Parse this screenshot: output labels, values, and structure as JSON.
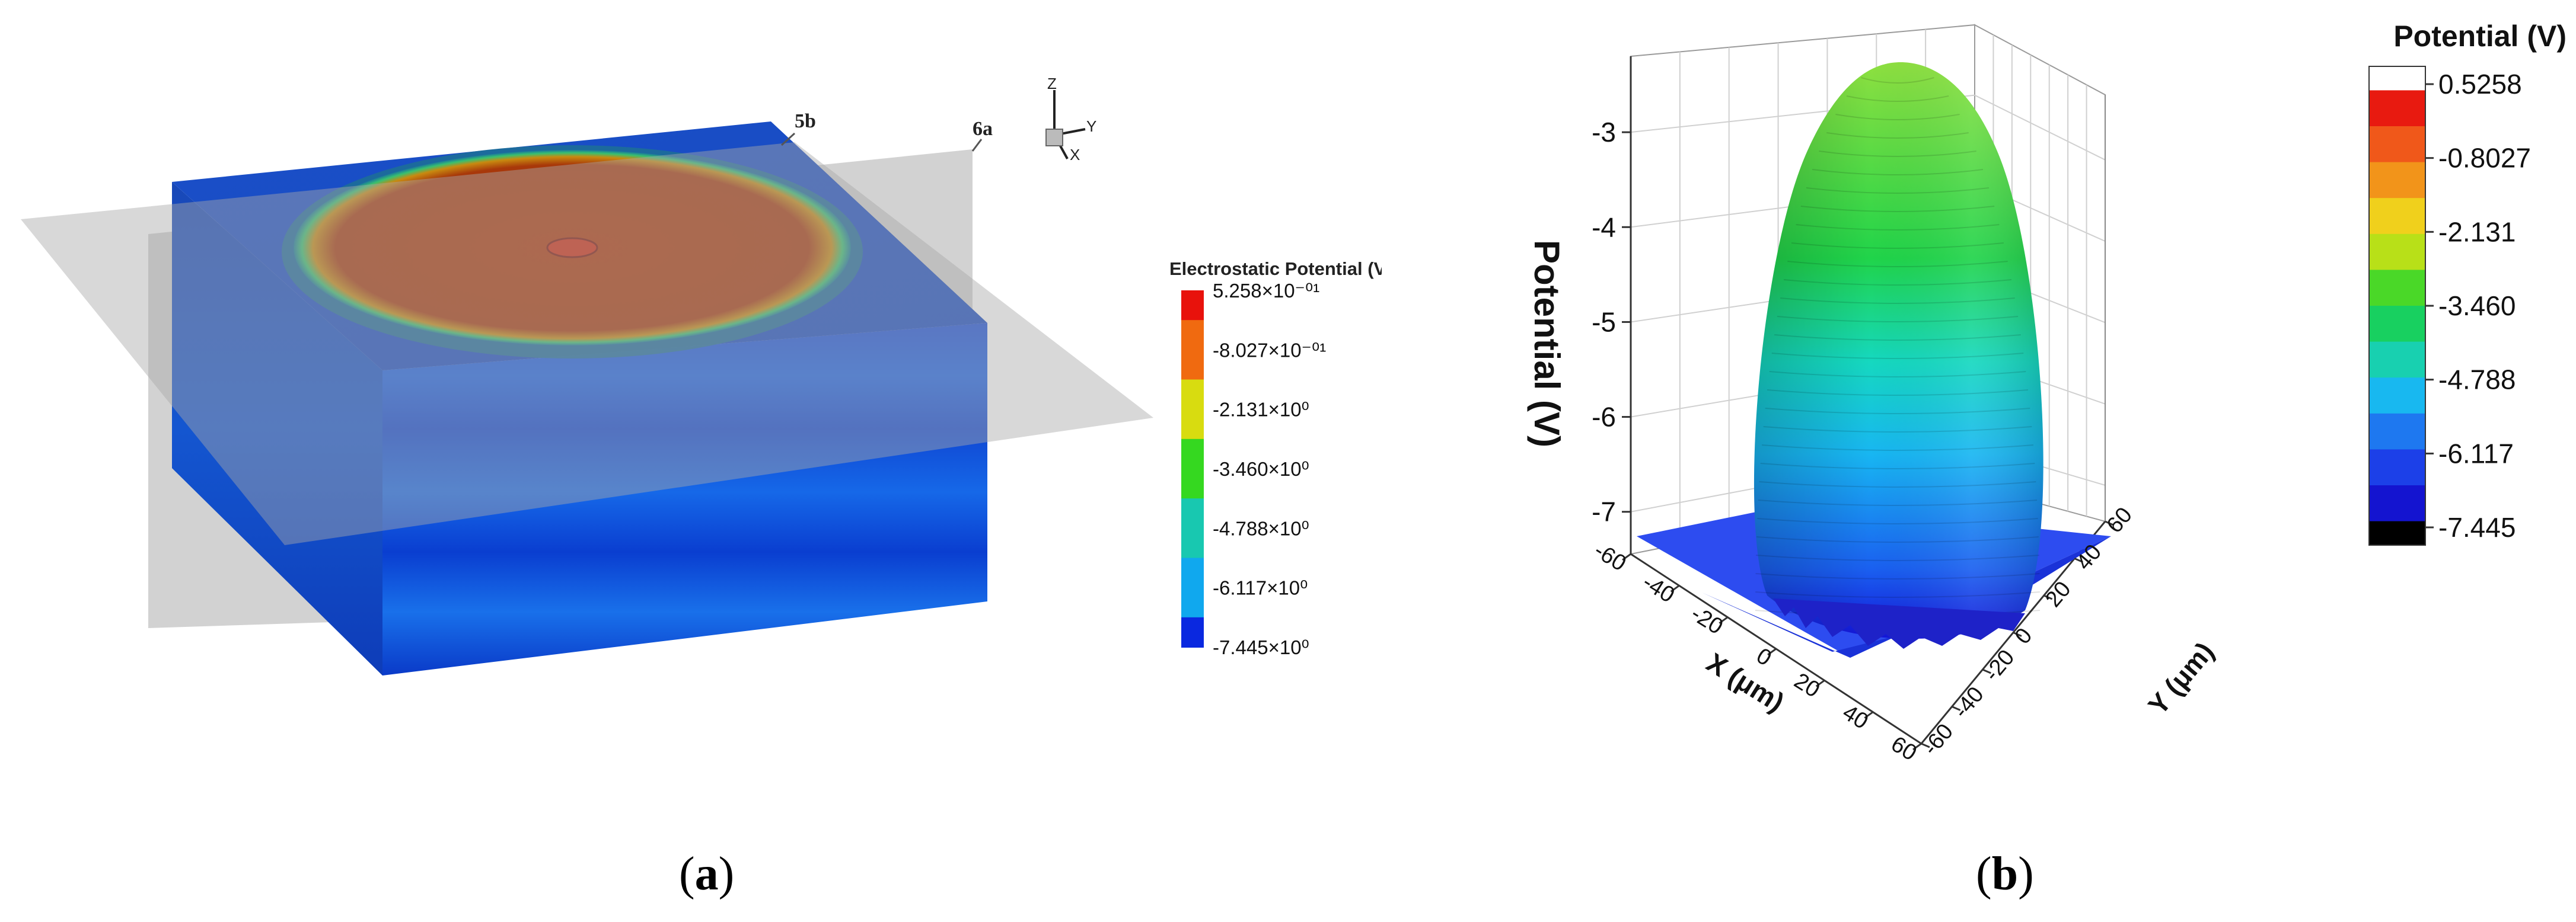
{
  "captions": {
    "a_open": "(",
    "a_letter": "a",
    "a_close": ")",
    "b_open": "(",
    "b_letter": "b",
    "b_close": ")"
  },
  "panel_a": {
    "plane_labels": [
      "5b",
      "6a"
    ],
    "axes_triad": {
      "z": "Z",
      "y": "Y",
      "x": "X"
    }
  },
  "chart_data": [
    {
      "type": "heatmap",
      "title": "",
      "legend_title": "Electrostatic Potential (V)",
      "legend_entries": [
        "5.258×10⁻⁰¹",
        "-8.027×10⁻⁰¹",
        "-2.131×10⁰",
        "-3.460×10⁰",
        "-4.788×10⁰",
        "-6.117×10⁰",
        "-7.445×10⁰"
      ],
      "legend_values": [
        0.5258,
        -0.8027,
        -2.131,
        -3.46,
        -4.788,
        -6.117,
        -7.445
      ],
      "legend_colors": [
        "#e8120c",
        "#f06a10",
        "#d8dc10",
        "#35d820",
        "#18c8b0",
        "#10a8ee",
        "#0a28e0"
      ],
      "range": [
        -7.445,
        0.5258
      ],
      "legend_placement": "right"
    },
    {
      "type": "surface",
      "title": "",
      "zlabel": "Potential (V)",
      "xlabel": "X (μm)",
      "ylabel": "Y (μm)",
      "z_ticks": [
        "-3",
        "-4",
        "-5",
        "-6",
        "-7"
      ],
      "z_tick_values": [
        -3,
        -4,
        -5,
        -6,
        -7
      ],
      "x_ticks": [
        "-60",
        "-40",
        "-20",
        "0",
        "20",
        "40",
        "60"
      ],
      "y_ticks": [
        "60",
        "40",
        "20",
        "0",
        "-20",
        "-40",
        "-60"
      ],
      "xlim": [
        -60,
        60
      ],
      "ylim": [
        -60,
        60
      ],
      "zlim": [
        -7.445,
        0.5258
      ],
      "colorbar_title": "Potential (V)",
      "colorbar_ticks": [
        "0.5258",
        "-0.8027",
        "-2.131",
        "-3.460",
        "-4.788",
        "-6.117",
        "-7.445"
      ],
      "colorbar_values": [
        0.5258,
        -0.8027,
        -2.131,
        -3.46,
        -4.788,
        -6.117,
        -7.445
      ],
      "grid": true,
      "legend_placement": "right"
    }
  ]
}
